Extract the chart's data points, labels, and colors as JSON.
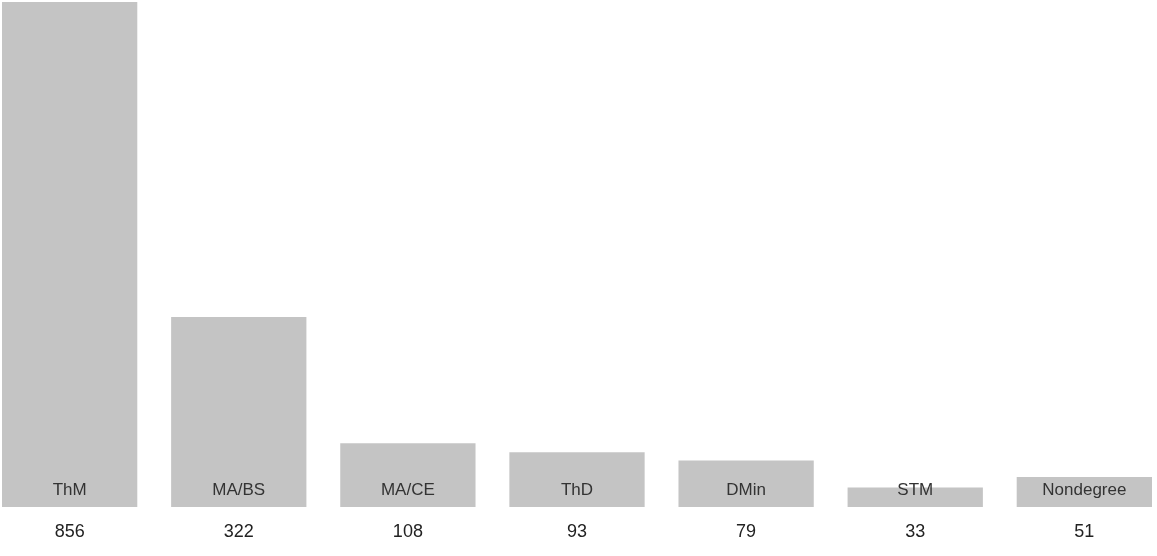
{
  "chart_data": {
    "type": "bar",
    "categories": [
      "ThM",
      "MA/BS",
      "MA/CE",
      "ThD",
      "DMin",
      "STM",
      "Nondegree"
    ],
    "values": [
      856,
      322,
      108,
      93,
      79,
      33,
      51
    ],
    "color": "#c4c4c4",
    "data_labels": true,
    "tick_labels": false
  }
}
